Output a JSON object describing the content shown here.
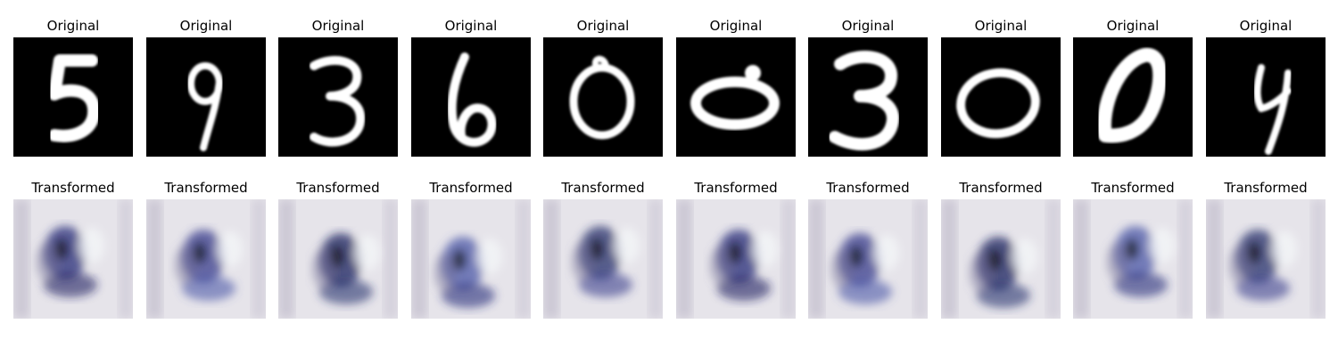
{
  "figure": {
    "row_titles": {
      "original": "Original",
      "transformed": "Transformed"
    },
    "panels": [
      {
        "digit": "5"
      },
      {
        "digit": "9"
      },
      {
        "digit": "3"
      },
      {
        "digit": "6"
      },
      {
        "digit": "0"
      },
      {
        "digit": "0"
      },
      {
        "digit": "3"
      },
      {
        "digit": "0"
      },
      {
        "digit": "0"
      },
      {
        "digit": "4"
      }
    ]
  }
}
